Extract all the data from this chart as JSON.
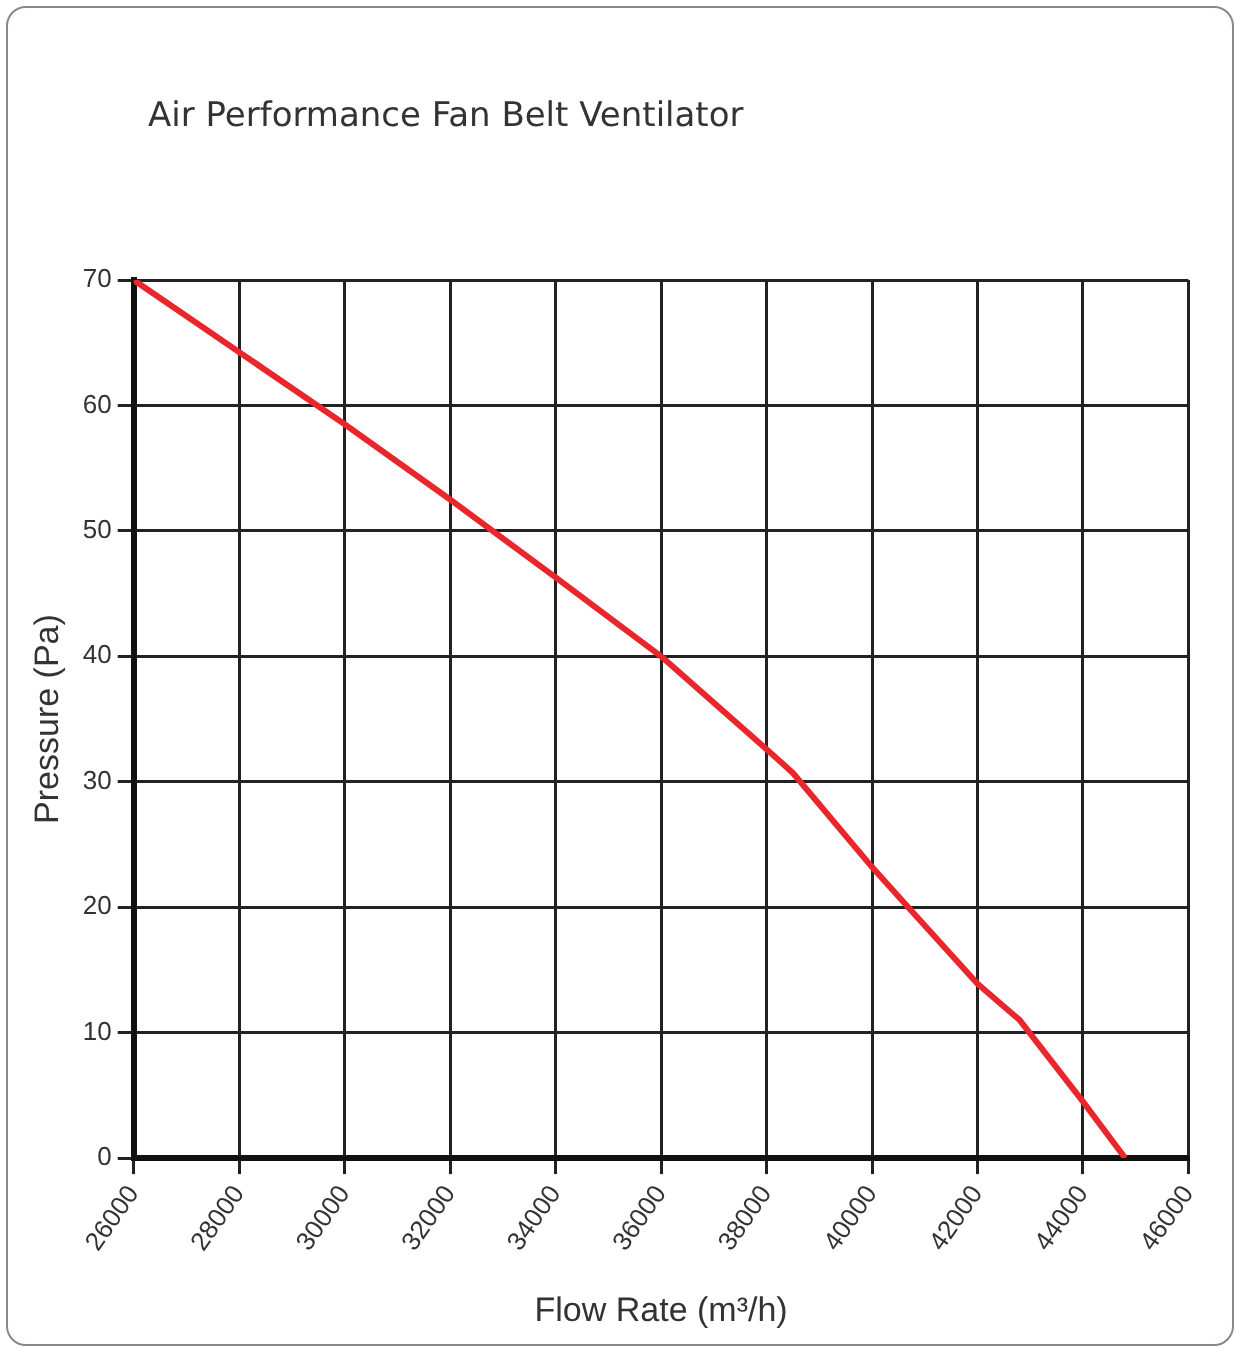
{
  "chart_data": {
    "type": "line",
    "title": "Air Performance Fan Belt Ventilator",
    "xlabel": "Flow Rate (m³/h)",
    "ylabel": "Pressure (Pa)",
    "x": [
      26000,
      30000,
      32000,
      34000,
      36000,
      38000,
      38500,
      40000,
      40600,
      42000,
      42800,
      44000,
      44800
    ],
    "series": [
      {
        "color": "#e8262b",
        "values": [
          70,
          58.5,
          52.5,
          46.3,
          40,
          32.6,
          30.7,
          23.2,
          20.4,
          13.9,
          11,
          4.5,
          0
        ]
      }
    ],
    "xlim": [
      26000,
      46000
    ],
    "xticks": [
      26000,
      28000,
      30000,
      32000,
      34000,
      36000,
      38000,
      40000,
      42000,
      44000,
      46000
    ],
    "ylim": [
      0,
      70
    ],
    "yticks": [
      0,
      10,
      20,
      30,
      40,
      50,
      60,
      70
    ],
    "grid": true,
    "legend": false,
    "marker": "none",
    "line_style": "solid"
  }
}
